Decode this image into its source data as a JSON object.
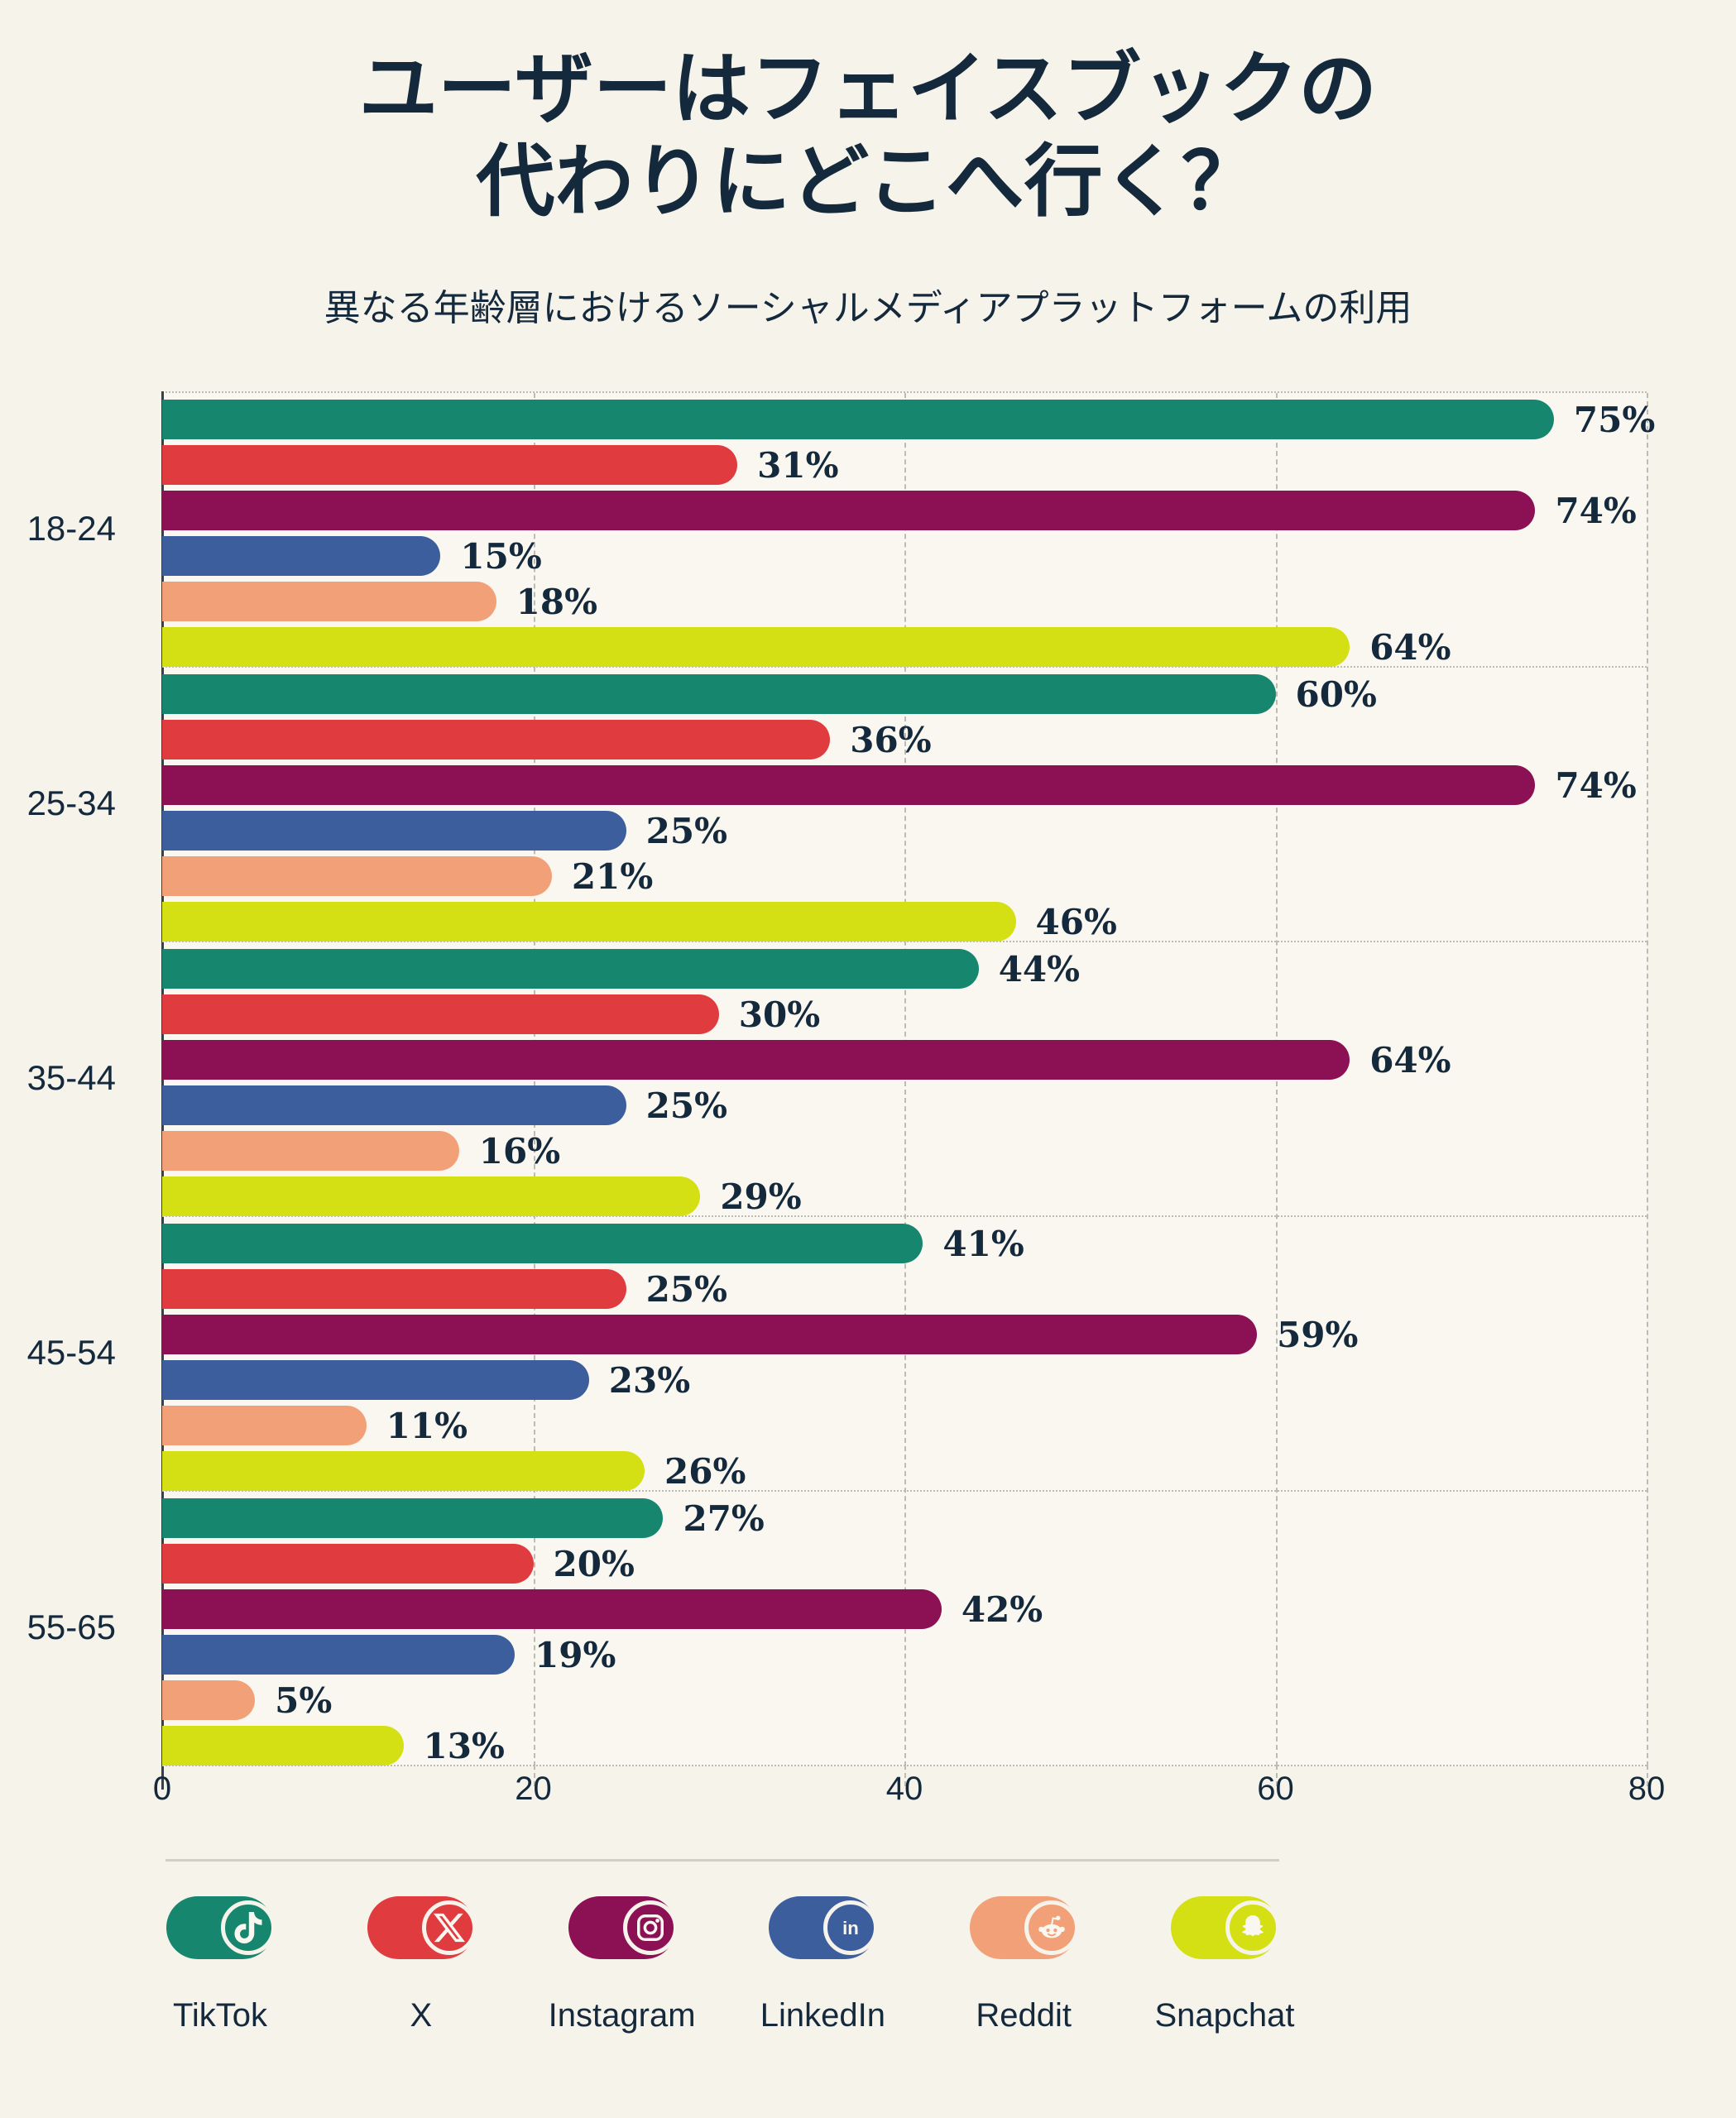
{
  "page": {
    "background": "#F6F3EB",
    "plot_background": "#F9F7F0",
    "text_color": "#14293C",
    "grid_color": "#BCBCB4",
    "axis_color": "#33424F",
    "divider_color": "#CFCFC8"
  },
  "header": {
    "title_line1": "ユーザーはフェイスブックの",
    "title_line2": "代わりにどこへ行く？",
    "subtitle": "異なる年齢層におけるソーシャルメディアプラットフォームの利用"
  },
  "chart_data": {
    "type": "bar",
    "orientation": "horizontal",
    "title": "ユーザーはフェイスブックの代わりにどこへ行く？",
    "subtitle": "異なる年齢層におけるソーシャルメディアプラットフォームの利用",
    "categories": [
      "18-24",
      "25-34",
      "35-44",
      "45-54",
      "55-65"
    ],
    "series": [
      {
        "name": "TikTok",
        "color": "#16876E",
        "values": [
          75,
          60,
          44,
          41,
          27
        ]
      },
      {
        "name": "X",
        "color": "#E03C3F",
        "values": [
          31,
          36,
          30,
          25,
          20
        ]
      },
      {
        "name": "Instagram",
        "color": "#8B1054",
        "values": [
          74,
          74,
          64,
          59,
          42
        ]
      },
      {
        "name": "LinkedIn",
        "color": "#3C5E9D",
        "values": [
          15,
          25,
          25,
          23,
          19
        ]
      },
      {
        "name": "Reddit",
        "color": "#F2A078",
        "values": [
          18,
          21,
          16,
          11,
          5
        ]
      },
      {
        "name": "Snapchat",
        "color": "#D4E014",
        "values": [
          64,
          46,
          29,
          26,
          13
        ]
      }
    ],
    "value_suffix": "%",
    "xlim": [
      0,
      80
    ],
    "x_ticks": [
      "0",
      "20",
      "40",
      "60",
      "80"
    ],
    "grid": "vertical-dashed",
    "legend_position": "bottom",
    "legend": [
      "TikTok",
      "X",
      "Instagram",
      "LinkedIn",
      "Reddit",
      "Snapchat"
    ]
  }
}
